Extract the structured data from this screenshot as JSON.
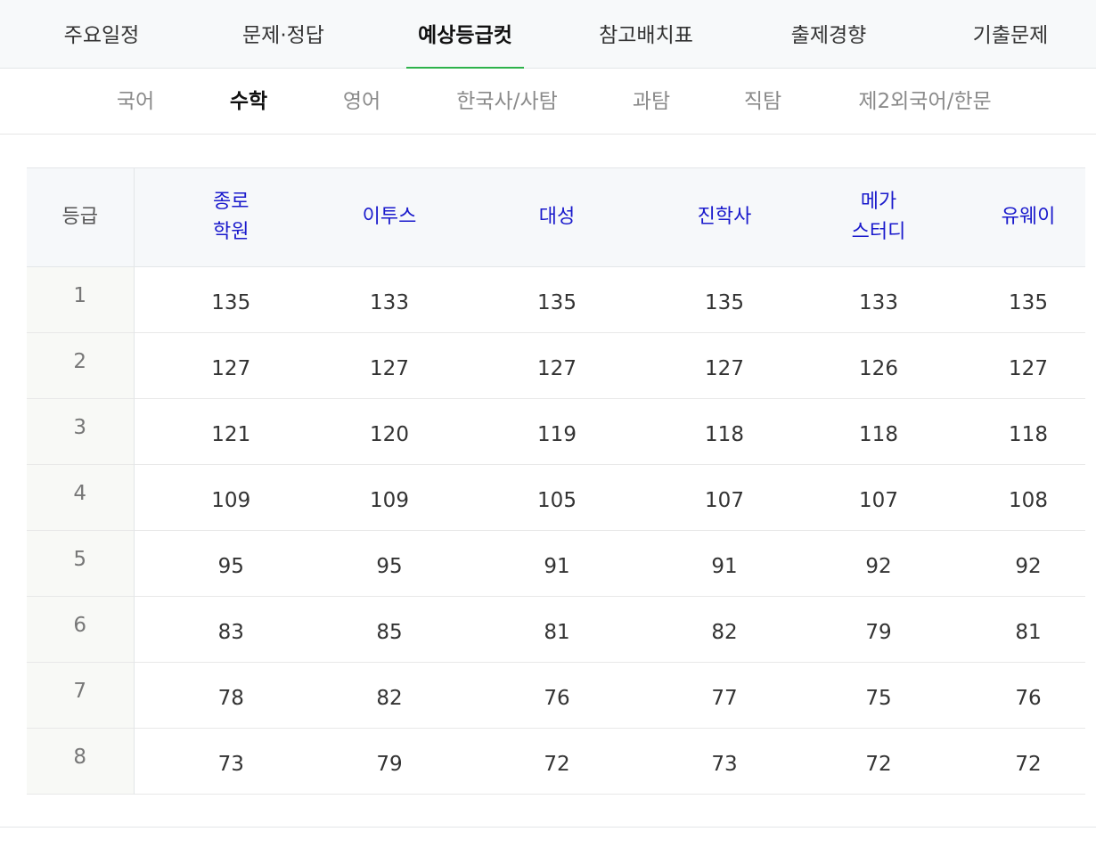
{
  "top_tabs": [
    {
      "label": "주요일정"
    },
    {
      "label": "문제·정답"
    },
    {
      "label": "예상등급컷",
      "active": true
    },
    {
      "label": "참고배치표"
    },
    {
      "label": "출제경향"
    },
    {
      "label": "기출문제"
    }
  ],
  "sub_tabs": [
    {
      "label": "국어"
    },
    {
      "label": "수학",
      "active": true
    },
    {
      "label": "영어"
    },
    {
      "label": "한국사/사탐"
    },
    {
      "label": "과탐"
    },
    {
      "label": "직탐"
    },
    {
      "label": "제2외국어/한문"
    }
  ],
  "table": {
    "grade_header": "등급",
    "providers": [
      {
        "line1": "종로",
        "line2": "학원"
      },
      {
        "line1": "이투스",
        "line2": ""
      },
      {
        "line1": "대성",
        "line2": ""
      },
      {
        "line1": "진학사",
        "line2": ""
      },
      {
        "line1": "메가",
        "line2": "스터디"
      },
      {
        "line1": "유웨이",
        "line2": ""
      }
    ],
    "rows": [
      {
        "grade": "1",
        "values": [
          "135",
          "133",
          "135",
          "135",
          "133",
          "135"
        ]
      },
      {
        "grade": "2",
        "values": [
          "127",
          "127",
          "127",
          "127",
          "126",
          "127"
        ]
      },
      {
        "grade": "3",
        "values": [
          "121",
          "120",
          "119",
          "118",
          "118",
          "118"
        ]
      },
      {
        "grade": "4",
        "values": [
          "109",
          "109",
          "105",
          "107",
          "107",
          "108"
        ]
      },
      {
        "grade": "5",
        "values": [
          "95",
          "95",
          "91",
          "91",
          "92",
          "92"
        ]
      },
      {
        "grade": "6",
        "values": [
          "83",
          "85",
          "81",
          "82",
          "79",
          "81"
        ]
      },
      {
        "grade": "7",
        "values": [
          "78",
          "82",
          "76",
          "77",
          "75",
          "76"
        ]
      },
      {
        "grade": "8",
        "values": [
          "73",
          "79",
          "72",
          "73",
          "72",
          "72"
        ]
      }
    ]
  },
  "colors": {
    "accent_underline": "#2db24a",
    "provider_header_text": "#1a1acc"
  }
}
